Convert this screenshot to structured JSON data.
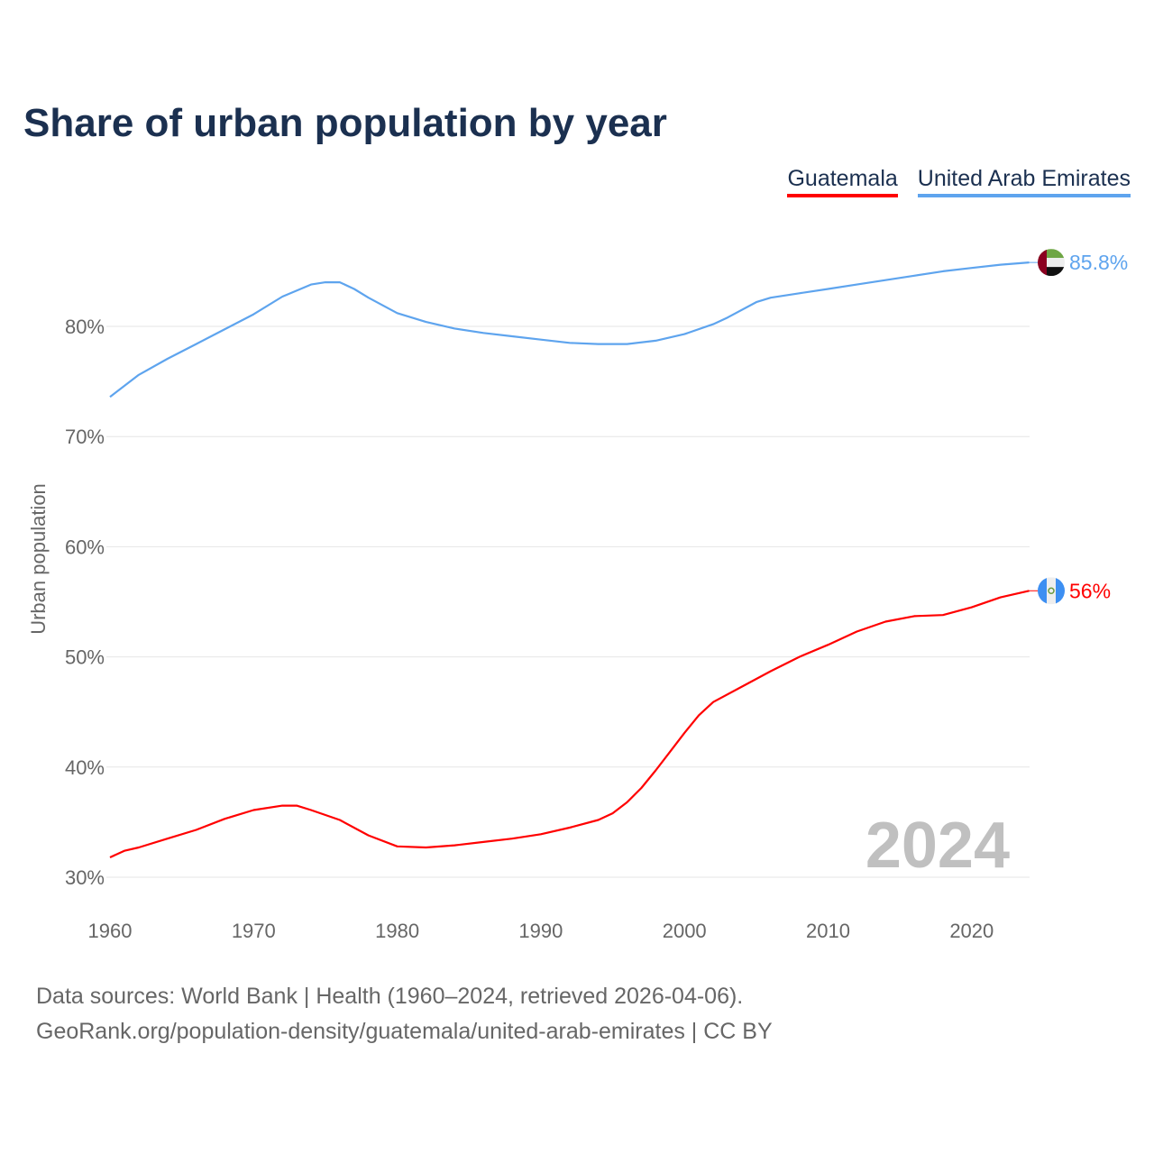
{
  "chart_data": {
    "type": "line",
    "title": "Share of urban population by year",
    "xlabel": "",
    "ylabel": "Urban population",
    "xlim": [
      1960,
      2024
    ],
    "ylim": [
      30,
      88
    ],
    "yticks": [
      30,
      40,
      50,
      60,
      70,
      80
    ],
    "ytick_labels": [
      "30%",
      "40%",
      "50%",
      "60%",
      "70%",
      "80%"
    ],
    "xticks": [
      1960,
      1970,
      1980,
      1990,
      2000,
      2010,
      2020
    ],
    "xtick_labels": [
      "1960",
      "1970",
      "1980",
      "1990",
      "2000",
      "2010",
      "2020"
    ],
    "grid": true,
    "legend_position": "top-right",
    "year_watermark": "2024",
    "series": [
      {
        "name": "Guatemala",
        "color": "#ff0000",
        "end_label": "56%",
        "flag": "guatemala-flag",
        "x": [
          1960,
          1961,
          1962,
          1964,
          1966,
          1968,
          1970,
          1972,
          1973,
          1974,
          1976,
          1978,
          1980,
          1982,
          1984,
          1986,
          1988,
          1990,
          1992,
          1994,
          1995,
          1996,
          1997,
          1998,
          1999,
          2000,
          2001,
          2002,
          2004,
          2006,
          2008,
          2010,
          2012,
          2014,
          2016,
          2018,
          2020,
          2022,
          2024
        ],
        "values": [
          31.8,
          32.4,
          32.7,
          33.5,
          34.3,
          35.3,
          36.1,
          36.5,
          36.5,
          36.1,
          35.2,
          33.8,
          32.8,
          32.7,
          32.9,
          33.2,
          33.5,
          33.9,
          34.5,
          35.2,
          35.8,
          36.8,
          38.1,
          39.7,
          41.4,
          43.1,
          44.7,
          45.9,
          47.3,
          48.7,
          50.0,
          51.1,
          52.3,
          53.2,
          53.7,
          53.8,
          54.5,
          55.4,
          56.0
        ]
      },
      {
        "name": "United Arab Emirates",
        "color": "#5ea4ee",
        "end_label": "85.8%",
        "flag": "uae-flag",
        "x": [
          1960,
          1962,
          1964,
          1966,
          1968,
          1970,
          1972,
          1974,
          1975,
          1976,
          1977,
          1978,
          1980,
          1982,
          1984,
          1986,
          1988,
          1990,
          1992,
          1994,
          1996,
          1998,
          2000,
          2002,
          2003,
          2005,
          2006,
          2008,
          2010,
          2012,
          2014,
          2016,
          2018,
          2020,
          2022,
          2024
        ],
        "values": [
          73.6,
          75.6,
          77.05,
          78.4,
          79.75,
          81.1,
          82.7,
          83.8,
          84.0,
          84.0,
          83.4,
          82.6,
          81.2,
          80.4,
          79.8,
          79.4,
          79.1,
          78.8,
          78.5,
          78.4,
          78.4,
          78.7,
          79.3,
          80.2,
          80.8,
          82.2,
          82.6,
          83.0,
          83.4,
          83.8,
          84.2,
          84.6,
          85.0,
          85.3,
          85.6,
          85.8
        ]
      }
    ]
  },
  "footer": {
    "line1": "Data sources: World Bank | Health (1960–2024, retrieved 2026-04-06).",
    "line2": "GeoRank.org/population-density/guatemala/united-arab-emirates | CC BY"
  }
}
